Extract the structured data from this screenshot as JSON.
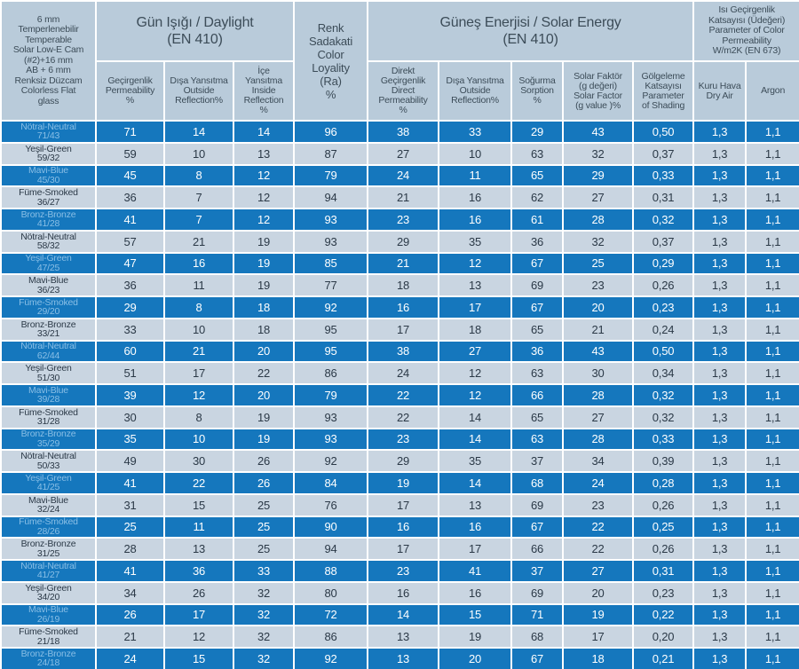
{
  "colors": {
    "blue": "#1577bd",
    "light_row": "#c9d5e1",
    "header_bg": "#b9cbda",
    "dark_text": "#2b3947",
    "header_text": "#3c4c58",
    "label_on_blue": "#8abfe6",
    "grid": "#ffffff"
  },
  "table": {
    "product_title": "6 mm\nTemperlenebilir\nTemperable\nSolar Low-E Cam\n(#2)+16 mm\nAB + 6 mm\nRenksiz Düzcam\nColorless Flat\nglass",
    "groups": {
      "daylight": "Gün Işığı / Daylight\n(EN 410)",
      "color_loyality": "Renk\nSadakati\nColor\nLoyality\n(Ra)\n%",
      "solar": "Güneş Enerjisi / Solar Energy\n(EN 410)",
      "u_value": "Isı Geçirgenlik\nKatsayısı (Üdeğeri)\nParameter of Color\nPermeability\nW/m2K (EN 673)"
    },
    "columns": [
      {
        "label": "Geçirgenlik\nPermeability\n%"
      },
      {
        "label": "Dışa Yansıtma\nOutside\nReflection%"
      },
      {
        "label": "İçe\nYansıtma\nInside\nReflection\n%"
      },
      {
        "label": "Direkt\nGeçirgenlik\nDirect\nPermeability\n%"
      },
      {
        "label": "Dışa Yansıtma\nOutside\nReflection%"
      },
      {
        "label": "Soğurma\nSorption\n%"
      },
      {
        "label": "Solar Faktör\n(g değeri)\nSolar Factor\n(g value )%"
      },
      {
        "label": "Gölgeleme\nKatsayısı\nParameter\nof Shading"
      },
      {
        "label": "Kuru Hava\nDry Air"
      },
      {
        "label": "Argon"
      }
    ],
    "rows": [
      {
        "name": "Nötral-Neutral",
        "code": "71/43",
        "highlight": true,
        "values": [
          "71",
          "14",
          "14",
          "96",
          "38",
          "33",
          "29",
          "43",
          "0,50",
          "1,3",
          "1,1"
        ]
      },
      {
        "name": "Yeşil-Green",
        "code": "59/32",
        "highlight": false,
        "values": [
          "59",
          "10",
          "13",
          "87",
          "27",
          "10",
          "63",
          "32",
          "0,37",
          "1,3",
          "1,1"
        ]
      },
      {
        "name": "Mavi-Blue",
        "code": "45/30",
        "highlight": true,
        "values": [
          "45",
          "8",
          "12",
          "79",
          "24",
          "11",
          "65",
          "29",
          "0,33",
          "1,3",
          "1,1"
        ]
      },
      {
        "name": "Füme-Smoked",
        "code": "36/27",
        "highlight": false,
        "values": [
          "36",
          "7",
          "12",
          "94",
          "21",
          "16",
          "62",
          "27",
          "0,31",
          "1,3",
          "1,1"
        ]
      },
      {
        "name": "Bronz-Bronze",
        "code": "41/28",
        "highlight": true,
        "values": [
          "41",
          "7",
          "12",
          "93",
          "23",
          "16",
          "61",
          "28",
          "0,32",
          "1,3",
          "1,1"
        ]
      },
      {
        "name": "Nötral-Neutral",
        "code": "58/32",
        "highlight": false,
        "values": [
          "57",
          "21",
          "19",
          "93",
          "29",
          "35",
          "36",
          "32",
          "0,37",
          "1,3",
          "1,1"
        ]
      },
      {
        "name": "Yeşil-Green",
        "code": "47/25",
        "highlight": true,
        "values": [
          "47",
          "16",
          "19",
          "85",
          "21",
          "12",
          "67",
          "25",
          "0,29",
          "1,3",
          "1,1"
        ]
      },
      {
        "name": "Mavi-Blue",
        "code": "36/23",
        "highlight": false,
        "values": [
          "36",
          "11",
          "19",
          "77",
          "18",
          "13",
          "69",
          "23",
          "0,26",
          "1,3",
          "1,1"
        ]
      },
      {
        "name": "Füme-Smoked",
        "code": "29/20",
        "highlight": true,
        "values": [
          "29",
          "8",
          "18",
          "92",
          "16",
          "17",
          "67",
          "20",
          "0,23",
          "1,3",
          "1,1"
        ]
      },
      {
        "name": "Bronz-Bronze",
        "code": "33/21",
        "highlight": false,
        "values": [
          "33",
          "10",
          "18",
          "95",
          "17",
          "18",
          "65",
          "21",
          "0,24",
          "1,3",
          "1,1"
        ]
      },
      {
        "name": "Nötral-Neutral",
        "code": "62/44",
        "highlight": true,
        "values": [
          "60",
          "21",
          "20",
          "95",
          "38",
          "27",
          "36",
          "43",
          "0,50",
          "1,3",
          "1,1"
        ]
      },
      {
        "name": "Yeşil-Green",
        "code": "51/30",
        "highlight": false,
        "values": [
          "51",
          "17",
          "22",
          "86",
          "24",
          "12",
          "63",
          "30",
          "0,34",
          "1,3",
          "1,1"
        ]
      },
      {
        "name": "Mavi-Blue",
        "code": "39/28",
        "highlight": true,
        "values": [
          "39",
          "12",
          "20",
          "79",
          "22",
          "12",
          "66",
          "28",
          "0,32",
          "1,3",
          "1,1"
        ]
      },
      {
        "name": "Füme-Smoked",
        "code": "31/28",
        "highlight": false,
        "values": [
          "30",
          "8",
          "19",
          "93",
          "22",
          "14",
          "65",
          "27",
          "0,32",
          "1,3",
          "1,1"
        ]
      },
      {
        "name": "Bronz-Bronze",
        "code": "35/29",
        "highlight": true,
        "values": [
          "35",
          "10",
          "19",
          "93",
          "23",
          "14",
          "63",
          "28",
          "0,33",
          "1,3",
          "1,1"
        ]
      },
      {
        "name": "Nötral-Neutral",
        "code": "50/33",
        "highlight": false,
        "values": [
          "49",
          "30",
          "26",
          "92",
          "29",
          "35",
          "37",
          "34",
          "0,39",
          "1,3",
          "1,1"
        ]
      },
      {
        "name": "Yeşil-Green",
        "code": "41/25",
        "highlight": true,
        "values": [
          "41",
          "22",
          "26",
          "84",
          "19",
          "14",
          "68",
          "24",
          "0,28",
          "1,3",
          "1,1"
        ]
      },
      {
        "name": "Mavi-Blue",
        "code": "32/24",
        "highlight": false,
        "values": [
          "31",
          "15",
          "25",
          "76",
          "17",
          "13",
          "69",
          "23",
          "0,26",
          "1,3",
          "1,1"
        ]
      },
      {
        "name": "Füme-Smoked",
        "code": "28/26",
        "highlight": true,
        "values": [
          "25",
          "11",
          "25",
          "90",
          "16",
          "16",
          "67",
          "22",
          "0,25",
          "1,3",
          "1,1"
        ]
      },
      {
        "name": "Bronz-Bronze",
        "code": "31/25",
        "highlight": false,
        "values": [
          "28",
          "13",
          "25",
          "94",
          "17",
          "17",
          "66",
          "22",
          "0,26",
          "1,3",
          "1,1"
        ]
      },
      {
        "name": "Nötral-Neutral",
        "code": "41/27",
        "highlight": true,
        "values": [
          "41",
          "36",
          "33",
          "88",
          "23",
          "41",
          "37",
          "27",
          "0,31",
          "1,3",
          "1,1"
        ]
      },
      {
        "name": "Yeşil-Green",
        "code": "34/20",
        "highlight": false,
        "values": [
          "34",
          "26",
          "32",
          "80",
          "16",
          "16",
          "69",
          "20",
          "0,23",
          "1,3",
          "1,1"
        ]
      },
      {
        "name": "Mavi-Blue",
        "code": "26/19",
        "highlight": true,
        "values": [
          "26",
          "17",
          "32",
          "72",
          "14",
          "15",
          "71",
          "19",
          "0,22",
          "1,3",
          "1,1"
        ]
      },
      {
        "name": "Füme-Smoked",
        "code": "21/18",
        "highlight": false,
        "values": [
          "21",
          "12",
          "32",
          "86",
          "13",
          "19",
          "68",
          "17",
          "0,20",
          "1,3",
          "1,1"
        ]
      },
      {
        "name": "Bronz-Bronze",
        "code": "24/18",
        "highlight": true,
        "values": [
          "24",
          "15",
          "32",
          "92",
          "13",
          "20",
          "67",
          "18",
          "0,21",
          "1,3",
          "1,1"
        ]
      }
    ]
  }
}
